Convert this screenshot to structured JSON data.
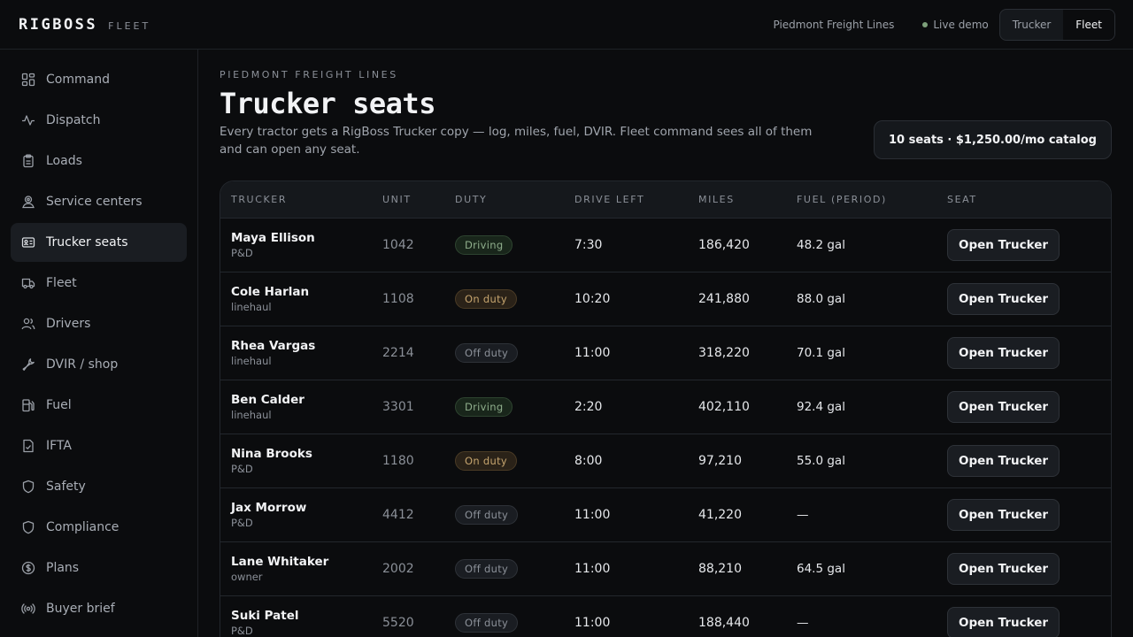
{
  "brand": {
    "name": "RIGBOSS",
    "sub": "FLEET"
  },
  "header": {
    "org": "Piedmont Freight Lines",
    "live_label": "Live demo",
    "modes": [
      {
        "label": "Trucker",
        "active": false
      },
      {
        "label": "Fleet",
        "active": true
      }
    ]
  },
  "sidebar": {
    "items": [
      {
        "label": "Command",
        "icon": "dashboard-grid-icon"
      },
      {
        "label": "Dispatch",
        "icon": "activity-pulse-icon"
      },
      {
        "label": "Loads",
        "icon": "clipboard-icon"
      },
      {
        "label": "Service centers",
        "icon": "map-pin-user-icon"
      },
      {
        "label": "Trucker seats",
        "icon": "id-card-icon",
        "active": true
      },
      {
        "label": "Fleet",
        "icon": "truck-icon"
      },
      {
        "label": "Drivers",
        "icon": "users-icon"
      },
      {
        "label": "DVIR / shop",
        "icon": "wrench-icon"
      },
      {
        "label": "Fuel",
        "icon": "fuel-pump-icon"
      },
      {
        "label": "IFTA",
        "icon": "file-check-icon"
      },
      {
        "label": "Safety",
        "icon": "shield-icon"
      },
      {
        "label": "Compliance",
        "icon": "shield-icon"
      },
      {
        "label": "Plans",
        "icon": "dollar-circle-icon"
      },
      {
        "label": "Buyer brief",
        "icon": "broadcast-icon"
      }
    ]
  },
  "page": {
    "eyebrow": "PIEDMONT FREIGHT LINES",
    "title": "Trucker seats",
    "description": "Every tractor gets a RigBoss Trucker copy — log, miles, fuel, DVIR. Fleet command sees all of them and can open any seat.",
    "seats_badge": "10 seats · $1,250.00/mo catalog"
  },
  "table": {
    "columns": [
      "TRUCKER",
      "UNIT",
      "DUTY",
      "DRIVE LEFT",
      "MILES",
      "FUEL (PERIOD)",
      "SEAT"
    ],
    "rows": [
      {
        "name": "Maya Ellison",
        "role": "P&D",
        "unit": "1042",
        "duty": "Driving",
        "duty_kind": "driving",
        "drive_left": "7:30",
        "miles": "186,420",
        "fuel": "48.2 gal",
        "action": "Open Trucker"
      },
      {
        "name": "Cole Harlan",
        "role": "linehaul",
        "unit": "1108",
        "duty": "On duty",
        "duty_kind": "onduty",
        "drive_left": "10:20",
        "miles": "241,880",
        "fuel": "88.0 gal",
        "action": "Open Trucker"
      },
      {
        "name": "Rhea Vargas",
        "role": "linehaul",
        "unit": "2214",
        "duty": "Off duty",
        "duty_kind": "offduty",
        "drive_left": "11:00",
        "miles": "318,220",
        "fuel": "70.1 gal",
        "action": "Open Trucker"
      },
      {
        "name": "Ben Calder",
        "role": "linehaul",
        "unit": "3301",
        "duty": "Driving",
        "duty_kind": "driving",
        "drive_left": "2:20",
        "miles": "402,110",
        "fuel": "92.4 gal",
        "action": "Open Trucker"
      },
      {
        "name": "Nina Brooks",
        "role": "P&D",
        "unit": "1180",
        "duty": "On duty",
        "duty_kind": "onduty",
        "drive_left": "8:00",
        "miles": "97,210",
        "fuel": "55.0 gal",
        "action": "Open Trucker"
      },
      {
        "name": "Jax Morrow",
        "role": "P&D",
        "unit": "4412",
        "duty": "Off duty",
        "duty_kind": "offduty",
        "drive_left": "11:00",
        "miles": "41,220",
        "fuel": "—",
        "action": "Open Trucker"
      },
      {
        "name": "Lane Whitaker",
        "role": "owner",
        "unit": "2002",
        "duty": "Off duty",
        "duty_kind": "offduty",
        "drive_left": "11:00",
        "miles": "88,210",
        "fuel": "64.5 gal",
        "action": "Open Trucker"
      },
      {
        "name": "Suki Patel",
        "role": "P&D",
        "unit": "5520",
        "duty": "Off duty",
        "duty_kind": "offduty",
        "drive_left": "11:00",
        "miles": "188,440",
        "fuel": "—",
        "action": "Open Trucker"
      }
    ]
  }
}
